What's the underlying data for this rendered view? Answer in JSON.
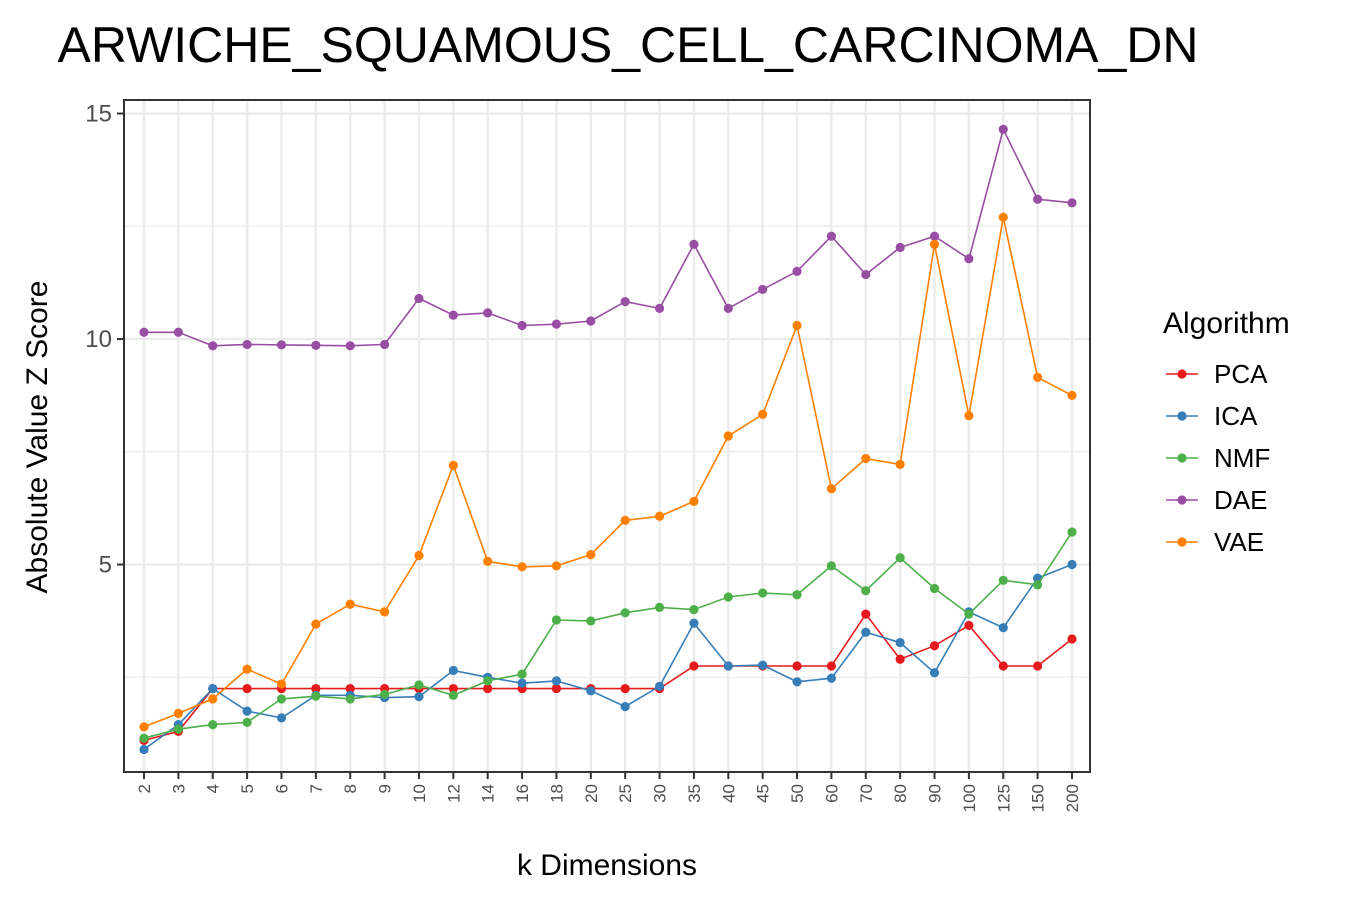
{
  "chart_data": {
    "type": "line",
    "title": "ARWICHE_SQUAMOUS_CELL_CARCINOMA_DN",
    "xlabel": "k Dimensions",
    "ylabel": "Absolute Value Z Score",
    "categories": [
      "2",
      "3",
      "4",
      "5",
      "6",
      "7",
      "8",
      "9",
      "10",
      "12",
      "14",
      "16",
      "18",
      "20",
      "25",
      "30",
      "35",
      "40",
      "45",
      "50",
      "60",
      "70",
      "80",
      "90",
      "100",
      "125",
      "150",
      "200"
    ],
    "ylim": [
      0.4,
      15.3
    ],
    "yticks": [
      "5",
      "10",
      "15"
    ],
    "ytick_values": [
      5,
      10,
      15
    ],
    "grid": true,
    "legend_title": "Algorithm",
    "legend_position": "right",
    "series": [
      {
        "name": "PCA",
        "color": "#e41a1c",
        "values": [
          1.1,
          1.3,
          2.25,
          2.25,
          2.25,
          2.25,
          2.25,
          2.25,
          2.25,
          2.25,
          2.25,
          2.25,
          2.25,
          2.25,
          2.25,
          2.25,
          2.75,
          2.75,
          2.75,
          2.75,
          2.75,
          3.9,
          2.9,
          3.2,
          3.65,
          2.75,
          2.75,
          3.35
        ]
      },
      {
        "name": "ICA",
        "color": "#377eb8",
        "values": [
          0.9,
          1.45,
          2.25,
          1.75,
          1.6,
          2.1,
          2.1,
          2.05,
          2.07,
          2.65,
          2.5,
          2.37,
          2.42,
          2.2,
          1.85,
          2.3,
          3.7,
          2.75,
          2.77,
          2.4,
          2.48,
          3.5,
          3.27,
          2.6,
          3.95,
          3.6,
          4.7,
          5.0
        ]
      },
      {
        "name": "NMF",
        "color": "#4daf4a",
        "values": [
          1.15,
          1.35,
          1.45,
          1.5,
          2.02,
          2.08,
          2.02,
          2.12,
          2.33,
          2.1,
          2.42,
          2.57,
          3.77,
          3.75,
          3.93,
          4.05,
          4.0,
          4.28,
          4.37,
          4.33,
          4.97,
          4.42,
          5.15,
          4.47,
          3.9,
          4.65,
          4.55,
          5.72
        ]
      },
      {
        "name": "DAE",
        "color": "#984ea3",
        "values": [
          10.15,
          10.15,
          9.85,
          9.88,
          9.87,
          9.86,
          9.85,
          9.88,
          10.9,
          10.53,
          10.58,
          10.3,
          10.33,
          10.4,
          10.83,
          10.68,
          12.1,
          10.68,
          11.1,
          11.5,
          12.28,
          11.43,
          12.03,
          12.28,
          11.78,
          14.65,
          13.1,
          13.02
        ]
      },
      {
        "name": "VAE",
        "color": "#ff7f00",
        "values": [
          1.4,
          1.7,
          2.02,
          2.68,
          2.35,
          3.68,
          4.12,
          3.95,
          5.2,
          7.2,
          5.07,
          4.95,
          4.97,
          5.22,
          5.98,
          6.07,
          6.4,
          7.85,
          8.33,
          10.3,
          6.68,
          7.35,
          7.22,
          12.1,
          8.3,
          12.7,
          9.15,
          8.75
        ]
      }
    ]
  }
}
